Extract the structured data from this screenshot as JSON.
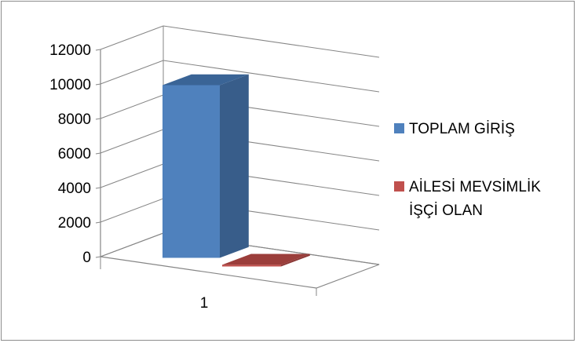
{
  "chart_data": {
    "type": "bar",
    "categories": [
      "1"
    ],
    "series": [
      {
        "name": "TOPLAM GİRİŞ",
        "values": [
          10000
        ],
        "color": "#4F81BD"
      },
      {
        "name": "AİLESİ MEVSİMLİK İŞÇİ OLAN",
        "name_lines": [
          "AİLESİ MEVSİMLİK",
          "İŞÇİ OLAN"
        ],
        "values": [
          100
        ],
        "color": "#C0504D"
      }
    ],
    "ylim": [
      0,
      12000
    ],
    "yticks": [
      0,
      2000,
      4000,
      6000,
      8000,
      10000,
      12000
    ],
    "grid": true,
    "legend": "right",
    "style": "3d"
  }
}
